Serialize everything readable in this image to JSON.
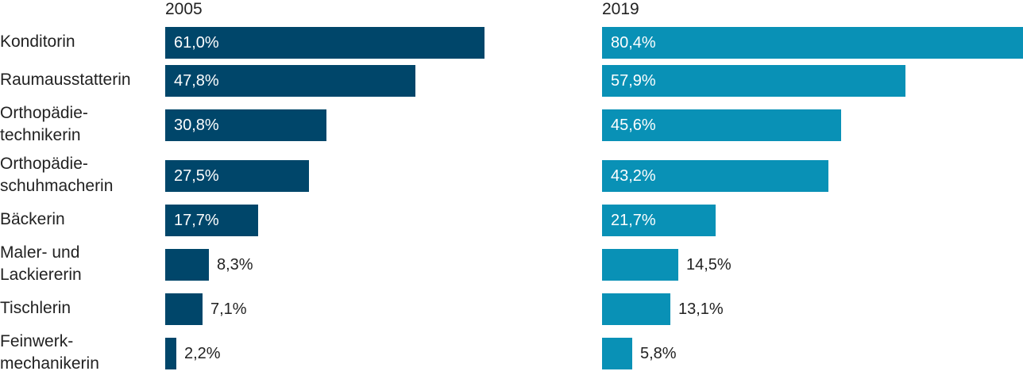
{
  "chart_data": {
    "type": "bar",
    "orientation": "horizontal",
    "categories": [
      "Konditorin",
      "Raumausstatterin",
      "Orthopädie-\ntechnikerin",
      "Orthopädie-\nschuhmacherin",
      "Bäckerin",
      "Maler- und\nLackiererin",
      "Tischlerin",
      "Feinwerk-\nmechanikerin"
    ],
    "series": [
      {
        "name": "2005",
        "color": "#00466a",
        "values": [
          61.0,
          47.8,
          30.8,
          27.5,
          17.7,
          8.3,
          7.1,
          2.2
        ],
        "labels": [
          "61,0%",
          "47,8%",
          "30,8%",
          "27,5%",
          "17,7%",
          "8,3%",
          "7,1%",
          "2,2%"
        ]
      },
      {
        "name": "2019",
        "color": "#0991b6",
        "values": [
          80.4,
          57.9,
          45.6,
          43.2,
          21.7,
          14.5,
          13.1,
          5.8
        ],
        "labels": [
          "80,4%",
          "57,9%",
          "45,6%",
          "43,2%",
          "21,7%",
          "14,5%",
          "13,1%",
          "5,8%"
        ]
      }
    ],
    "value_unit": "%"
  }
}
